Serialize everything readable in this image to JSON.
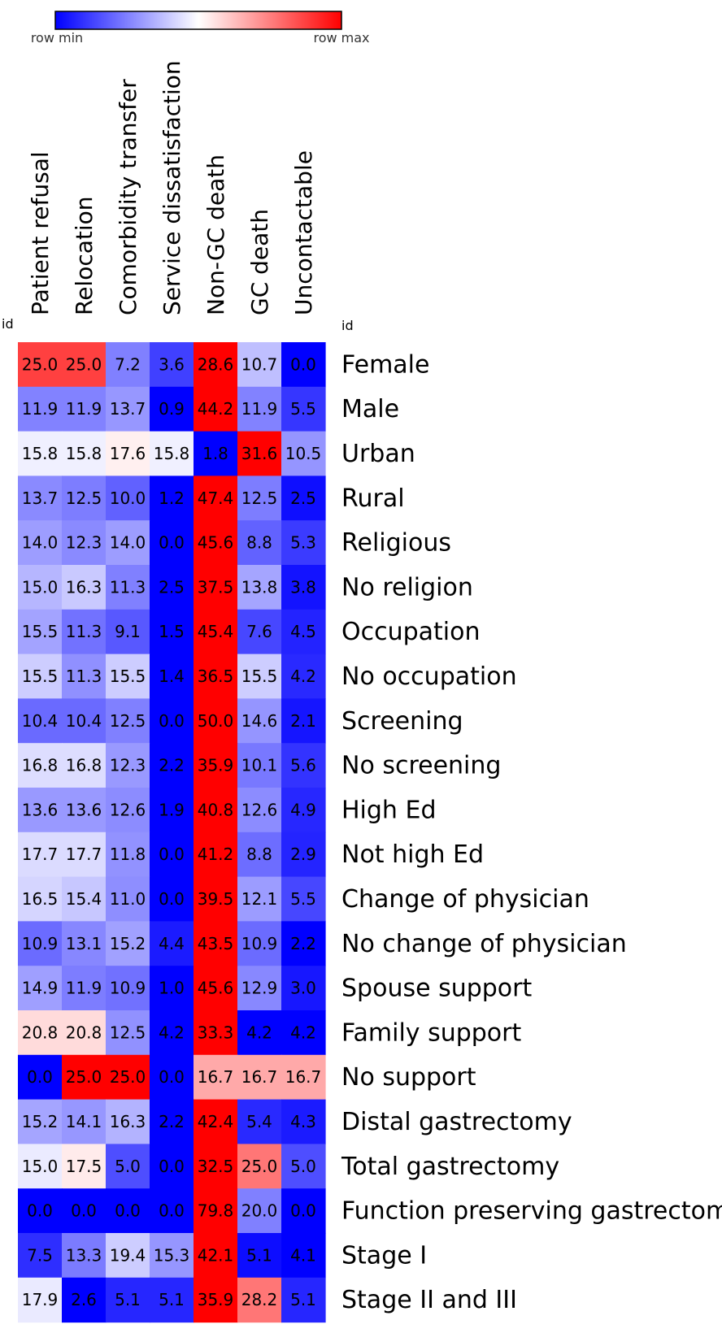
{
  "legend": {
    "min_label": "row min",
    "max_label": "row max",
    "colors": {
      "min": "#0000ff",
      "mid": "#ffffff",
      "max": "#ff0000"
    }
  },
  "chart_data": {
    "type": "heatmap",
    "normalization": "row",
    "corner_label_left": "id",
    "corner_label_right": "id",
    "columns": [
      "Patient refusal",
      "Relocation",
      "Comorbidity transfer",
      "Service dissatisfaction",
      "Non-GC death",
      "GC death",
      "Uncontactable"
    ],
    "rows": [
      {
        "label": "Female",
        "values": [
          25.0,
          25.0,
          7.2,
          3.6,
          28.6,
          10.7,
          0.0
        ]
      },
      {
        "label": "Male",
        "values": [
          11.9,
          11.9,
          13.7,
          0.9,
          44.2,
          11.9,
          5.5
        ]
      },
      {
        "label": "Urban",
        "values": [
          15.8,
          15.8,
          17.6,
          15.8,
          1.8,
          31.6,
          10.5
        ]
      },
      {
        "label": "Rural",
        "values": [
          13.7,
          12.5,
          10.0,
          1.2,
          47.4,
          12.5,
          2.5
        ]
      },
      {
        "label": "Religious",
        "values": [
          14.0,
          12.3,
          14.0,
          0.0,
          45.6,
          8.8,
          5.3
        ]
      },
      {
        "label": "No religion",
        "values": [
          15.0,
          16.3,
          11.3,
          2.5,
          37.5,
          13.8,
          3.8
        ]
      },
      {
        "label": "Occupation",
        "values": [
          15.5,
          11.3,
          9.1,
          1.5,
          45.4,
          7.6,
          4.5
        ]
      },
      {
        "label": "No occupation",
        "values": [
          15.5,
          11.3,
          15.5,
          1.4,
          36.5,
          15.5,
          4.2
        ]
      },
      {
        "label": "Screening",
        "values": [
          10.4,
          10.4,
          12.5,
          0.0,
          50.0,
          14.6,
          2.1
        ]
      },
      {
        "label": "No screening",
        "values": [
          16.8,
          16.8,
          12.3,
          2.2,
          35.9,
          10.1,
          5.6
        ]
      },
      {
        "label": "High Ed",
        "values": [
          13.6,
          13.6,
          12.6,
          1.9,
          40.8,
          12.6,
          4.9
        ]
      },
      {
        "label": "Not high Ed",
        "values": [
          17.7,
          17.7,
          11.8,
          0.0,
          41.2,
          8.8,
          2.9
        ]
      },
      {
        "label": "Change of physician",
        "values": [
          16.5,
          15.4,
          11.0,
          0.0,
          39.5,
          12.1,
          5.5
        ]
      },
      {
        "label": "No change of physician",
        "values": [
          10.9,
          13.1,
          15.2,
          4.4,
          43.5,
          10.9,
          2.2
        ]
      },
      {
        "label": "Spouse support",
        "values": [
          14.9,
          11.9,
          10.9,
          1.0,
          45.6,
          12.9,
          3.0
        ]
      },
      {
        "label": "Family support",
        "values": [
          20.8,
          20.8,
          12.5,
          4.2,
          33.3,
          4.2,
          4.2
        ]
      },
      {
        "label": "No support",
        "values": [
          0.0,
          25.0,
          25.0,
          0.0,
          16.7,
          16.7,
          16.7
        ]
      },
      {
        "label": "Distal gastrectomy",
        "values": [
          15.2,
          14.1,
          16.3,
          2.2,
          42.4,
          5.4,
          4.3
        ]
      },
      {
        "label": "Total gastrectomy",
        "values": [
          15.0,
          17.5,
          5.0,
          0.0,
          32.5,
          25.0,
          5.0
        ]
      },
      {
        "label": "Function preserving gastrectomy",
        "values": [
          0.0,
          0.0,
          0.0,
          0.0,
          79.8,
          20.0,
          0.0
        ]
      },
      {
        "label": "Stage I",
        "values": [
          7.5,
          13.3,
          19.4,
          15.3,
          42.1,
          5.1,
          4.1
        ]
      },
      {
        "label": "Stage II and III",
        "values": [
          17.9,
          2.6,
          5.1,
          5.1,
          35.9,
          28.2,
          5.1
        ]
      }
    ]
  }
}
